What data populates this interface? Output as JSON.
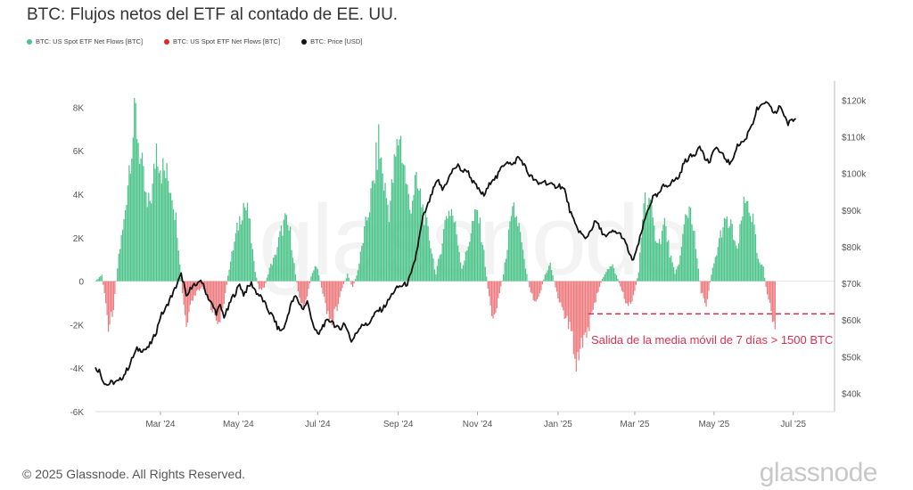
{
  "title": "BTC: Flujos netos del ETF al contado de EE. UU.",
  "legend": [
    {
      "label": "BTC: US Spot ETF Net Flows [BTC]",
      "color": "#4dc48a"
    },
    {
      "label": "BTC: US Spot ETF Net Flows [BTC]",
      "color": "#e3242b"
    },
    {
      "label": "BTC: Price [USD]",
      "color": "#111111"
    }
  ],
  "footer": {
    "copyright": "© 2025 Glassnode. All Rights Reserved.",
    "logo": "glassnode"
  },
  "watermark": "glassnode",
  "chart_data": {
    "type": "bar",
    "colors": {
      "inflow": "#4dc48a",
      "outflow": "#ed7b7f",
      "price": "#111111",
      "threshold": "#e0304e"
    },
    "x_range": [
      "2024-01-11",
      "2025-07-31"
    ],
    "x_ticks": [
      "Mar '24",
      "May '24",
      "Jul '24",
      "Sep '24",
      "Nov '24",
      "Jan '25",
      "Mar '25",
      "May '25",
      "Jul '25"
    ],
    "y_left": {
      "range": [
        -6000,
        9000
      ],
      "ticks": [
        "8K",
        "6K",
        "4K",
        "2K",
        "0",
        "-2K",
        "-4K",
        "-6K"
      ]
    },
    "y_right": {
      "range": [
        35000,
        124000
      ],
      "ticks": [
        "$120k",
        "$110k",
        "$100k",
        "$90k",
        "$80k",
        "$70k",
        "$60k",
        "$50k",
        "$40k"
      ]
    },
    "threshold": {
      "value": -1500,
      "label": "Salida de la media móvil de 7 días > 1500 BTC"
    },
    "flow_keypoints": [
      [
        0,
        0
      ],
      [
        5,
        300
      ],
      [
        10,
        -2000
      ],
      [
        14,
        -1200
      ],
      [
        18,
        1200
      ],
      [
        22,
        2700
      ],
      [
        27,
        6000
      ],
      [
        31,
        7600
      ],
      [
        35,
        5500
      ],
      [
        40,
        3300
      ],
      [
        44,
        4200
      ],
      [
        47,
        6300
      ],
      [
        51,
        5200
      ],
      [
        55,
        4800
      ],
      [
        59,
        4200
      ],
      [
        63,
        2400
      ],
      [
        67,
        -600
      ],
      [
        70,
        -2200
      ],
      [
        74,
        -1000
      ],
      [
        78,
        -500
      ],
      [
        82,
        -300
      ],
      [
        86,
        -700
      ],
      [
        90,
        -1300
      ],
      [
        94,
        -1800
      ],
      [
        98,
        -1500
      ],
      [
        102,
        300
      ],
      [
        106,
        1500
      ],
      [
        110,
        2600
      ],
      [
        114,
        3600
      ],
      [
        118,
        3000
      ],
      [
        122,
        800
      ],
      [
        126,
        -400
      ],
      [
        130,
        -300
      ],
      [
        134,
        600
      ],
      [
        138,
        1100
      ],
      [
        142,
        2100
      ],
      [
        146,
        2800
      ],
      [
        150,
        2200
      ],
      [
        154,
        300
      ],
      [
        158,
        -1100
      ],
      [
        162,
        -1000
      ],
      [
        166,
        200
      ],
      [
        170,
        800
      ],
      [
        174,
        -300
      ],
      [
        178,
        -1300
      ],
      [
        182,
        -1900
      ],
      [
        186,
        -1200
      ],
      [
        190,
        -300
      ],
      [
        194,
        300
      ],
      [
        198,
        -300
      ],
      [
        202,
        500
      ],
      [
        206,
        1900
      ],
      [
        210,
        3200
      ],
      [
        214,
        4500
      ],
      [
        218,
        6400
      ],
      [
        222,
        4500
      ],
      [
        226,
        3200
      ],
      [
        230,
        5200
      ],
      [
        234,
        6900
      ],
      [
        238,
        5100
      ],
      [
        242,
        3300
      ],
      [
        246,
        4500
      ],
      [
        250,
        3900
      ],
      [
        254,
        2800
      ],
      [
        258,
        1700
      ],
      [
        262,
        300
      ],
      [
        266,
        1500
      ],
      [
        270,
        3100
      ],
      [
        274,
        3300
      ],
      [
        278,
        2200
      ],
      [
        282,
        600
      ],
      [
        286,
        1400
      ],
      [
        290,
        2600
      ],
      [
        294,
        3200
      ],
      [
        298,
        1800
      ],
      [
        302,
        -300
      ],
      [
        306,
        -1900
      ],
      [
        310,
        -800
      ],
      [
        314,
        300
      ],
      [
        318,
        2100
      ],
      [
        322,
        3300
      ],
      [
        326,
        2500
      ],
      [
        330,
        900
      ],
      [
        334,
        -300
      ],
      [
        338,
        -900
      ],
      [
        342,
        -600
      ],
      [
        346,
        300
      ],
      [
        350,
        800
      ],
      [
        354,
        -300
      ],
      [
        358,
        -1100
      ],
      [
        362,
        -1700
      ],
      [
        366,
        -2300
      ],
      [
        370,
        -3600
      ],
      [
        374,
        -2800
      ],
      [
        378,
        -2300
      ],
      [
        382,
        -1700
      ],
      [
        386,
        -600
      ],
      [
        390,
        100
      ],
      [
        394,
        600
      ],
      [
        398,
        700
      ],
      [
        402,
        100
      ],
      [
        406,
        -600
      ],
      [
        410,
        -1200
      ],
      [
        414,
        -700
      ],
      [
        418,
        400
      ],
      [
        422,
        3800
      ],
      [
        426,
        3700
      ],
      [
        430,
        2300
      ],
      [
        434,
        1800
      ],
      [
        438,
        2700
      ],
      [
        442,
        1300
      ],
      [
        446,
        300
      ],
      [
        450,
        1100
      ],
      [
        454,
        2900
      ],
      [
        458,
        3500
      ],
      [
        462,
        1500
      ],
      [
        466,
        -500
      ],
      [
        470,
        -1100
      ],
      [
        474,
        300
      ],
      [
        478,
        1300
      ],
      [
        482,
        2400
      ],
      [
        486,
        2700
      ],
      [
        490,
        2400
      ],
      [
        494,
        1300
      ],
      [
        498,
        3200
      ],
      [
        502,
        3700
      ],
      [
        506,
        2800
      ],
      [
        510,
        900
      ],
      [
        514,
        600
      ],
      [
        517,
        -700
      ],
      [
        520,
        -1400
      ],
      [
        523,
        -2200
      ]
    ],
    "price_keypoints": [
      [
        0,
        46800
      ],
      [
        3,
        46200
      ],
      [
        6,
        43400
      ],
      [
        9,
        42300
      ],
      [
        12,
        42900
      ],
      [
        15,
        43000
      ],
      [
        18,
        43200
      ],
      [
        22,
        45000
      ],
      [
        26,
        47500
      ],
      [
        29,
        50000
      ],
      [
        32,
        52000
      ],
      [
        36,
        51900
      ],
      [
        40,
        52100
      ],
      [
        44,
        54500
      ],
      [
        47,
        57000
      ],
      [
        50,
        61000
      ],
      [
        54,
        63000
      ],
      [
        57,
        65500
      ],
      [
        60,
        67500
      ],
      [
        63,
        70000
      ],
      [
        66,
        72300
      ],
      [
        68,
        70000
      ],
      [
        70,
        66000
      ],
      [
        72,
        67500
      ],
      [
        75,
        70000
      ],
      [
        78,
        69000
      ],
      [
        81,
        71200
      ],
      [
        84,
        68500
      ],
      [
        87,
        66000
      ],
      [
        90,
        64000
      ],
      [
        93,
        62000
      ],
      [
        96,
        63800
      ],
      [
        99,
        61000
      ],
      [
        102,
        63000
      ],
      [
        105,
        66000
      ],
      [
        108,
        67500
      ],
      [
        111,
        69800
      ],
      [
        114,
        67000
      ],
      [
        117,
        68700
      ],
      [
        120,
        70000
      ],
      [
        124,
        67500
      ],
      [
        128,
        66000
      ],
      [
        131,
        64000
      ],
      [
        134,
        62000
      ],
      [
        137,
        60800
      ],
      [
        140,
        58000
      ],
      [
        143,
        57000
      ],
      [
        146,
        58500
      ],
      [
        150,
        64000
      ],
      [
        154,
        66500
      ],
      [
        157,
        64500
      ],
      [
        160,
        63000
      ],
      [
        163,
        65000
      ],
      [
        166,
        61000
      ],
      [
        169,
        57000
      ],
      [
        172,
        56000
      ],
      [
        175,
        58500
      ],
      [
        178,
        59500
      ],
      [
        182,
        60000
      ],
      [
        185,
        58000
      ],
      [
        188,
        57500
      ],
      [
        191,
        59000
      ],
      [
        194,
        57500
      ],
      [
        197,
        54000
      ],
      [
        201,
        56500
      ],
      [
        205,
        59000
      ],
      [
        209,
        58500
      ],
      [
        213,
        60500
      ],
      [
        217,
        62500
      ],
      [
        221,
        63000
      ],
      [
        225,
        65000
      ],
      [
        229,
        67500
      ],
      [
        233,
        69000
      ],
      [
        237,
        69500
      ],
      [
        240,
        70000
      ],
      [
        243,
        72500
      ],
      [
        246,
        76500
      ],
      [
        249,
        82000
      ],
      [
        252,
        88000
      ],
      [
        255,
        90500
      ],
      [
        258,
        93500
      ],
      [
        261,
        96500
      ],
      [
        264,
        98000
      ],
      [
        267,
        95500
      ],
      [
        270,
        97500
      ],
      [
        273,
        99500
      ],
      [
        276,
        101500
      ],
      [
        279,
        102000
      ],
      [
        283,
        100500
      ],
      [
        286,
        101000
      ],
      [
        290,
        98000
      ],
      [
        293,
        96500
      ],
      [
        296,
        95000
      ],
      [
        299,
        94000
      ],
      [
        302,
        96000
      ],
      [
        305,
        98500
      ],
      [
        309,
        99000
      ],
      [
        313,
        102000
      ],
      [
        317,
        103500
      ],
      [
        321,
        102000
      ],
      [
        325,
        104500
      ],
      [
        329,
        103000
      ],
      [
        333,
        100000
      ],
      [
        337,
        98500
      ],
      [
        341,
        97000
      ],
      [
        345,
        98000
      ],
      [
        349,
        97000
      ],
      [
        353,
        96500
      ],
      [
        357,
        96800
      ],
      [
        361,
        95500
      ],
      [
        365,
        90000
      ],
      [
        369,
        86000
      ],
      [
        373,
        84000
      ],
      [
        377,
        82000
      ],
      [
        381,
        84500
      ],
      [
        385,
        87000
      ],
      [
        389,
        84500
      ],
      [
        393,
        82500
      ],
      [
        397,
        84000
      ],
      [
        401,
        84000
      ],
      [
        405,
        83000
      ],
      [
        409,
        80000
      ],
      [
        413,
        76000
      ],
      [
        417,
        79500
      ],
      [
        421,
        85000
      ],
      [
        425,
        90000
      ],
      [
        429,
        93500
      ],
      [
        433,
        94000
      ],
      [
        437,
        96500
      ],
      [
        441,
        97000
      ],
      [
        445,
        98000
      ],
      [
        449,
        99000
      ],
      [
        453,
        103000
      ],
      [
        457,
        104500
      ],
      [
        461,
        105000
      ],
      [
        465,
        108000
      ],
      [
        469,
        104000
      ],
      [
        473,
        103000
      ],
      [
        477,
        107500
      ],
      [
        481,
        105500
      ],
      [
        485,
        104000
      ],
      [
        489,
        102500
      ],
      [
        493,
        107000
      ],
      [
        497,
        108500
      ],
      [
        500,
        109000
      ],
      [
        503,
        112000
      ],
      [
        506,
        114000
      ],
      [
        509,
        117500
      ],
      [
        512,
        118000
      ],
      [
        515,
        119500
      ],
      [
        518,
        118500
      ],
      [
        521,
        117000
      ],
      [
        524,
        116500
      ],
      [
        527,
        118500
      ],
      [
        530,
        116000
      ],
      [
        533,
        113500
      ],
      [
        536,
        114500
      ],
      [
        539,
        115000
      ]
    ]
  }
}
